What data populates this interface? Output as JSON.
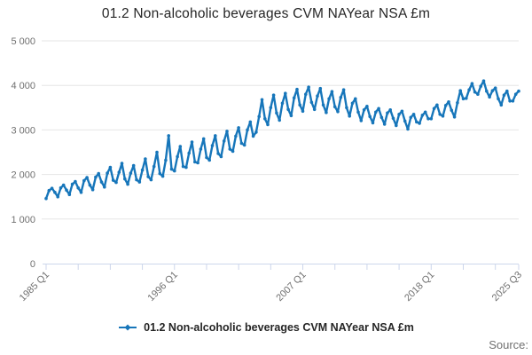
{
  "chart_data": {
    "type": "line",
    "title": "01.2 Non-alcoholic beverages CVM NAYear NSA £m",
    "series_name": "01.2 Non-alcoholic beverages CVM NAYear NSA £m",
    "x_start_label": "1985 Q1",
    "x_end_label": "2025 Q3",
    "frequency": "quarterly",
    "n_points": 163,
    "ylim": [
      0,
      5000
    ],
    "y_ticks": [
      {
        "v": 0,
        "label": "0"
      },
      {
        "v": 1000,
        "label": "1 000"
      },
      {
        "v": 2000,
        "label": "2 000"
      },
      {
        "v": 3000,
        "label": "3 000"
      },
      {
        "v": 4000,
        "label": "4 000"
      },
      {
        "v": 5000,
        "label": "5 000"
      }
    ],
    "x_labeled_ticks": [
      {
        "q": 0,
        "label": "1985 Q1"
      },
      {
        "q": 44,
        "label": "1996 Q1"
      },
      {
        "q": 88,
        "label": "2007 Q1"
      },
      {
        "q": 132,
        "label": "2018 Q1"
      },
      {
        "q": 162,
        "label": "2025 Q3"
      }
    ],
    "x_minor_tick_every": 11,
    "grid": "horizontal-only",
    "legend_position": "bottom-center",
    "values": [
      1460,
      1640,
      1690,
      1600,
      1500,
      1700,
      1760,
      1650,
      1550,
      1780,
      1840,
      1700,
      1600,
      1860,
      1930,
      1760,
      1660,
      1940,
      2020,
      1830,
      1720,
      2030,
      2160,
      1870,
      1820,
      2050,
      2250,
      1900,
      1780,
      2030,
      2200,
      1880,
      1830,
      2100,
      2350,
      1950,
      1880,
      2180,
      2500,
      2020,
      1960,
      2320,
      2870,
      2120,
      2080,
      2400,
      2630,
      2180,
      2160,
      2480,
      2730,
      2280,
      2260,
      2570,
      2800,
      2380,
      2320,
      2650,
      2870,
      2470,
      2400,
      2750,
      2970,
      2570,
      2520,
      2860,
      3050,
      2700,
      2660,
      3000,
      3180,
      2860,
      2950,
      3300,
      3680,
      3250,
      3120,
      3500,
      3780,
      3380,
      3220,
      3600,
      3820,
      3460,
      3320,
      3720,
      3910,
      3560,
      3420,
      3800,
      3960,
      3620,
      3460,
      3760,
      3930,
      3560,
      3390,
      3700,
      3860,
      3520,
      3410,
      3730,
      3900,
      3500,
      3310,
      3600,
      3700,
      3400,
      3210,
      3450,
      3530,
      3300,
      3160,
      3400,
      3480,
      3280,
      3130,
      3380,
      3450,
      3260,
      3100,
      3350,
      3420,
      3200,
      3020,
      3280,
      3350,
      3180,
      3150,
      3330,
      3400,
      3250,
      3250,
      3480,
      3560,
      3350,
      3310,
      3550,
      3630,
      3440,
      3290,
      3610,
      3880,
      3700,
      3710,
      3900,
      4040,
      3850,
      3800,
      3980,
      4100,
      3870,
      3740,
      3880,
      3940,
      3700,
      3560,
      3780,
      3870,
      3650,
      3650,
      3800,
      3870
    ],
    "colors": {
      "line": "#1776ba",
      "grid": "#e6e6e6",
      "axis": "#ccd6eb",
      "tick_text": "#707070",
      "title_text": "#262626"
    }
  },
  "legend": {
    "label": "01.2 Non-alcoholic beverages CVM NAYear NSA £m"
  },
  "footer": {
    "source_label": "Source:"
  }
}
